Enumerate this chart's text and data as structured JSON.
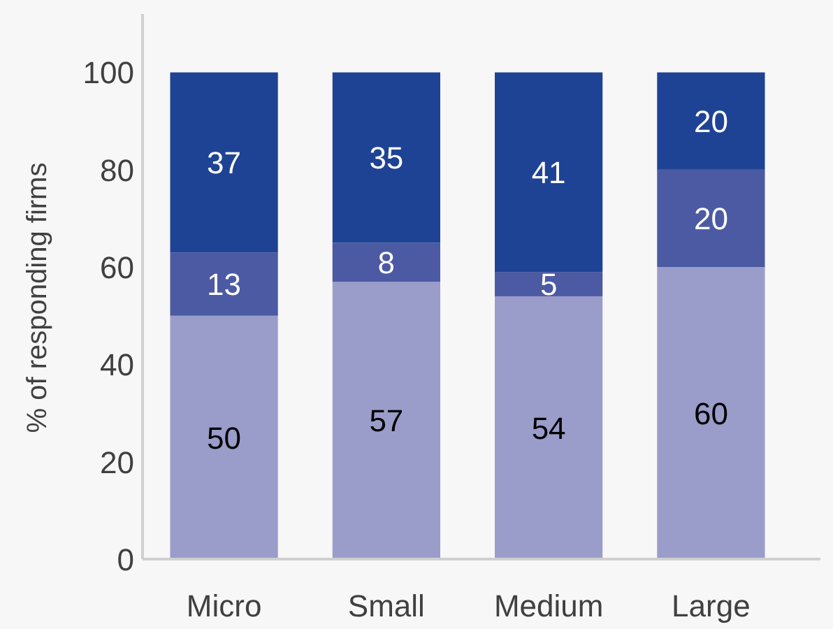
{
  "chart_data": {
    "type": "bar",
    "stacked": true,
    "ylabel": "% of responding firms",
    "categories": [
      "Micro",
      "Small",
      "Medium",
      "Large"
    ],
    "series": [
      {
        "color": "#9a9cc9",
        "values": [
          50,
          57,
          54,
          60
        ]
      },
      {
        "color": "#4b5aa2",
        "values": [
          13,
          8,
          5,
          20
        ]
      },
      {
        "color": "#1f4394",
        "values": [
          37,
          35,
          41,
          20
        ]
      }
    ],
    "ylim": [
      0,
      112
    ],
    "yticks": [
      0,
      20,
      40,
      60,
      80,
      100
    ],
    "data_labels": true
  }
}
